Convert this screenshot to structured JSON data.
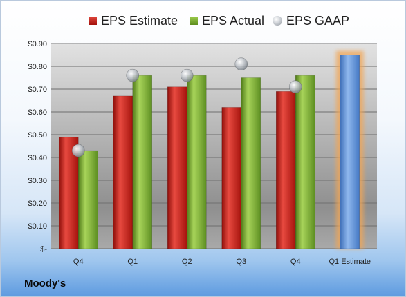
{
  "company": "Moody's",
  "chart_data": {
    "type": "bar",
    "categories": [
      "Q4",
      "Q1",
      "Q2",
      "Q3",
      "Q4",
      "Q1 Estimate"
    ],
    "series": [
      {
        "name": "EPS Estimate",
        "values": [
          0.49,
          0.67,
          0.71,
          0.62,
          0.69,
          null
        ],
        "color": "#c8211b"
      },
      {
        "name": "EPS Actual",
        "values": [
          0.43,
          0.76,
          0.76,
          0.75,
          0.76,
          null
        ],
        "color": "#7fb33a"
      },
      {
        "name": "EPS GAAP",
        "values": [
          0.43,
          0.76,
          0.76,
          0.81,
          0.71,
          null
        ],
        "color": "#b7bcc2",
        "style": "sphere-marker"
      }
    ],
    "estimate": {
      "category": "Q1 Estimate",
      "value": 0.85,
      "color": "#5b8fd6",
      "glow": "#f2a654"
    },
    "yticks": [
      "$-",
      "$0.10",
      "$0.20",
      "$0.30",
      "$0.40",
      "$0.50",
      "$0.60",
      "$0.70",
      "$0.80",
      "$0.90"
    ],
    "ylim": [
      0,
      0.9
    ],
    "grid": true,
    "legend_position": "top"
  }
}
